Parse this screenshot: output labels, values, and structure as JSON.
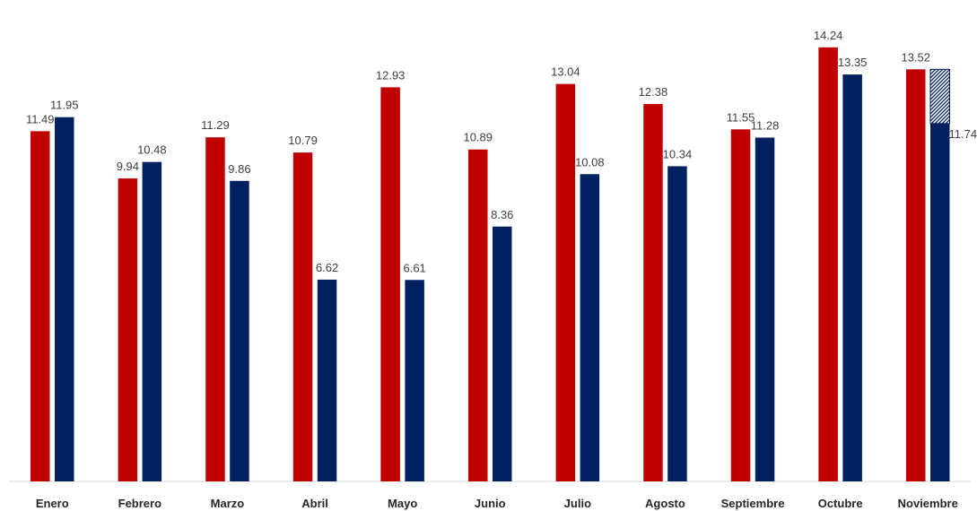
{
  "chart_data": {
    "type": "bar",
    "categories": [
      "Enero",
      "Febrero",
      "Marzo",
      "Abril",
      "Mayo",
      "Junio",
      "Julio",
      "Agosto",
      "Septiembre",
      "Octubre",
      "Noviembre"
    ],
    "series": [
      {
        "color": "#C00000",
        "values": [
          11.49,
          9.94,
          11.29,
          10.79,
          12.93,
          10.89,
          13.04,
          12.38,
          11.55,
          14.24,
          13.52
        ],
        "labels": [
          "11.49",
          "9.94",
          "11.29",
          "10.79",
          "12.93",
          "10.89",
          "13.04",
          "12.38",
          "11.55",
          "14.24",
          "13.52"
        ]
      },
      {
        "color": "#002060",
        "values": [
          11.95,
          10.48,
          9.86,
          6.62,
          6.61,
          8.36,
          10.08,
          10.34,
          11.28,
          13.35,
          11.74
        ],
        "labels": [
          "11.95",
          "10.48",
          "9.86",
          "6.62",
          "6.61",
          "8.36",
          "10.08",
          "10.34",
          "11.28",
          "13.35",
          "11.74"
        ]
      }
    ],
    "projection": {
      "category": "Noviembre",
      "series_index": 1,
      "projected_value": 13.52,
      "style": "hatched"
    },
    "ylim": [
      0,
      14.5
    ],
    "grid": false,
    "legend": "none",
    "title": "",
    "xlabel": "",
    "ylabel": ""
  }
}
